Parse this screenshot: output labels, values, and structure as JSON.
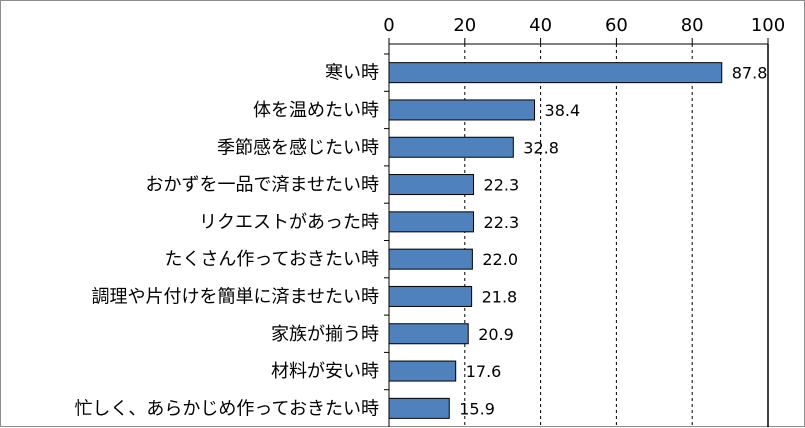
{
  "chart_data": {
    "type": "bar",
    "orientation": "horizontal",
    "categories": [
      "寒い時",
      "体を温めたい時",
      "季節感を感じたい時",
      "おかずを一品で済ませたい時",
      "リクエストがあった時",
      "たくさん作っておきたい時",
      "調理や片付けを簡単に済ませたい時",
      "家族が揃う時",
      "材料が安い時",
      "忙しく、あらかじめ作っておきたい時"
    ],
    "values": [
      87.8,
      38.4,
      32.8,
      22.3,
      22.3,
      22.0,
      21.8,
      20.9,
      17.6,
      15.9
    ],
    "value_labels": [
      "87.8",
      "38.4",
      "32.8",
      "22.3",
      "22.3",
      "22.0",
      "21.8",
      "20.9",
      "17.6",
      "15.9"
    ],
    "xlim": [
      0,
      100
    ],
    "xticks": [
      0,
      20,
      40,
      60,
      80,
      100
    ],
    "xtick_labels": [
      "0",
      "20",
      "40",
      "60",
      "80",
      "100"
    ],
    "axis_position": "top",
    "grid": "vertical dashed",
    "legend": "none",
    "colors": {
      "bar_fill": "#4f81bd",
      "bar_stroke": "#000000",
      "axis": "#000000",
      "grid": "#000000"
    }
  }
}
